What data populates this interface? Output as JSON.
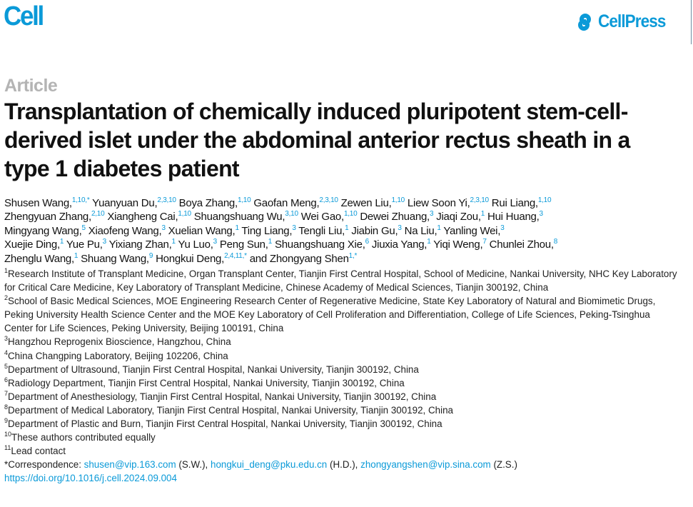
{
  "header": {
    "journal": "Cell",
    "publisher": "CellPress",
    "brand_color": "#0b9ad8"
  },
  "article_type": "Article",
  "title": "Transplantation of chemically induced pluripotent stem-cell-derived islet under the abdominal anterior rectus sheath in a type 1 diabetes patient",
  "authors": [
    {
      "name": "Shusen Wang,",
      "sup": "1,10,*"
    },
    {
      "name": "Yuanyuan Du,",
      "sup": "2,3,10"
    },
    {
      "name": "Boya Zhang,",
      "sup": "1,10"
    },
    {
      "name": "Gaofan Meng,",
      "sup": "2,3,10"
    },
    {
      "name": "Zewen Liu,",
      "sup": "1,10"
    },
    {
      "name": "Liew Soon Yi,",
      "sup": "2,3,10"
    },
    {
      "name": "Rui Liang,",
      "sup": "1,10"
    },
    {
      "name": "Zhengyuan Zhang,",
      "sup": "2,10"
    },
    {
      "name": "Xiangheng Cai,",
      "sup": "1,10"
    },
    {
      "name": "Shuangshuang Wu,",
      "sup": "3,10"
    },
    {
      "name": "Wei Gao,",
      "sup": "1,10"
    },
    {
      "name": "Dewei Zhuang,",
      "sup": "3"
    },
    {
      "name": "Jiaqi Zou,",
      "sup": "1"
    },
    {
      "name": "Hui Huang,",
      "sup": "3"
    },
    {
      "name": "Mingyang Wang,",
      "sup": "5"
    },
    {
      "name": "Xiaofeng Wang,",
      "sup": "3"
    },
    {
      "name": "Xuelian Wang,",
      "sup": "1"
    },
    {
      "name": "Ting Liang,",
      "sup": "3"
    },
    {
      "name": "Tengli Liu,",
      "sup": "1"
    },
    {
      "name": "Jiabin Gu,",
      "sup": "3"
    },
    {
      "name": "Na Liu,",
      "sup": "1"
    },
    {
      "name": "Yanling Wei,",
      "sup": "3"
    },
    {
      "name": "Xuejie Ding,",
      "sup": "1"
    },
    {
      "name": "Yue Pu,",
      "sup": "3"
    },
    {
      "name": "Yixiang Zhan,",
      "sup": "1"
    },
    {
      "name": "Yu Luo,",
      "sup": "3"
    },
    {
      "name": "Peng Sun,",
      "sup": "1"
    },
    {
      "name": "Shuangshuang Xie,",
      "sup": "6"
    },
    {
      "name": "Jiuxia Yang,",
      "sup": "1"
    },
    {
      "name": "Yiqi Weng,",
      "sup": "7"
    },
    {
      "name": "Chunlei Zhou,",
      "sup": "8"
    },
    {
      "name": "Zhenglu Wang,",
      "sup": "1"
    },
    {
      "name": "Shuang Wang,",
      "sup": "9"
    },
    {
      "name": "Hongkui Deng,",
      "sup": "2,4,11,*"
    },
    {
      "name": "and Zhongyang Shen",
      "sup": "1,*"
    }
  ],
  "affiliations": [
    {
      "sup": "1",
      "text": "Research Institute of Transplant Medicine, Organ Transplant Center, Tianjin First Central Hospital, School of Medicine, Nankai University, NHC Key Laboratory for Critical Care Medicine, Key Laboratory of Transplant Medicine, Chinese Academy of Medical Sciences, Tianjin 300192, China"
    },
    {
      "sup": "2",
      "text": "School of Basic Medical Sciences, MOE Engineering Research Center of Regenerative Medicine, State Key Laboratory of Natural and Biomimetic Drugs, Peking University Health Science Center and the MOE Key Laboratory of Cell Proliferation and Differentiation, College of Life Sciences, Peking-Tsinghua Center for Life Sciences, Peking University, Beijing 100191, China"
    },
    {
      "sup": "3",
      "text": "Hangzhou Reprogenix Bioscience, Hangzhou, China"
    },
    {
      "sup": "4",
      "text": "China Changping Laboratory, Beijing 102206, China"
    },
    {
      "sup": "5",
      "text": "Department of Ultrasound, Tianjin First Central Hospital, Nankai University, Tianjin 300192, China"
    },
    {
      "sup": "6",
      "text": "Radiology Department, Tianjin First Central Hospital, Nankai University, Tianjin 300192, China"
    },
    {
      "sup": "7",
      "text": "Department of Anesthesiology, Tianjin First Central Hospital, Nankai University, Tianjin 300192, China"
    },
    {
      "sup": "8",
      "text": "Department of Medical Laboratory, Tianjin First Central Hospital, Nankai University, Tianjin 300192, China"
    },
    {
      "sup": "9",
      "text": "Department of Plastic and Burn, Tianjin First Central Hospital, Nankai University, Tianjin 300192, China"
    },
    {
      "sup": "10",
      "text": "These authors contributed equally"
    },
    {
      "sup": "11",
      "text": "Lead contact"
    }
  ],
  "correspondence": {
    "label": "*Correspondence: ",
    "emails": [
      {
        "email": "shusen@vip.163.com",
        "who": " (S.W.), "
      },
      {
        "email": "hongkui_deng@pku.edu.cn",
        "who": " (H.D.), "
      },
      {
        "email": "zhongyangshen@vip.sina.com",
        "who": " (Z.S.)"
      }
    ]
  },
  "doi": "https://doi.org/10.1016/j.cell.2024.09.004"
}
